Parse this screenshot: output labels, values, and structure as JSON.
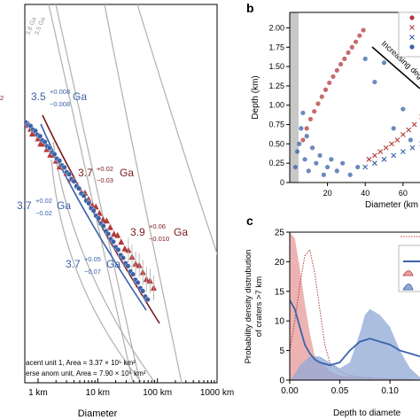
{
  "colors": {
    "red": "#b43a3a",
    "dark_red": "#7a1a1a",
    "blue": "#3a62a8",
    "gray_curve": "#b0b0b0",
    "gray_band": "#c8c8c8",
    "pink_fill": "#e9a0a0",
    "blue_fill": "#8fa8d6"
  },
  "chart_data": [
    {
      "panel": "a",
      "type": "scatter",
      "xlabel": "Diameter",
      "ylabel": "",
      "x_scale": "log",
      "x_ticks": [
        "1 km",
        "10 km",
        "100 km",
        "1000 km"
      ],
      "x_tick_values": [
        1,
        10,
        100,
        1000
      ],
      "xlim": [
        0.6,
        1000
      ],
      "iso_labels": [
        "3.8 Ga",
        "3.5 Ga"
      ],
      "annotations": [
        {
          "text": "3.5",
          "sup": "+0.008",
          "sub": "−0.008",
          "unit": "Ga",
          "color": "blue"
        },
        {
          "text": "3.7",
          "sup": "+0.02",
          "sub": "−0.03",
          "unit": "Ga",
          "color": "red"
        },
        {
          "text": "3.9",
          "sup": "+0.06",
          "sub": "−0.010",
          "unit": "Ga",
          "color": "red"
        },
        {
          "text": "3.7",
          "sup": "+0.02",
          "sub": "−0.02",
          "unit": "Ga",
          "color": "blue"
        },
        {
          "text": "3.7",
          "sup": "+0.05",
          "sub": "−0.07",
          "unit": "Ga",
          "color": "blue"
        },
        {
          "text": "",
          "sup": "2",
          "sub": "",
          "unit": "",
          "color": "red"
        }
      ],
      "legend": [
        "acent unit 1, Area = 3.37 × 10⁵ km²",
        "erse anom unit,  Area = 7.90 × 10⁵ km²"
      ],
      "series": [
        {
          "name": "",
          "marker": "triangle",
          "color": "red",
          "x": [
            0.55,
            0.6,
            0.65,
            0.7,
            0.75,
            0.8,
            0.9,
            1.0,
            1.1,
            1.2,
            1.4,
            1.6,
            1.8,
            2.0,
            2.3,
            2.6,
            3.0,
            3.5,
            4.0,
            4.6,
            5.3,
            6.1,
            7.0,
            8.1,
            9.3,
            10.7,
            12.3,
            14.1,
            16.2,
            18.7,
            21.5,
            24.7,
            28.4,
            32.6,
            37.5,
            43.1,
            49.6,
            57.0,
            65.5,
            75.3,
            86.6
          ]
        },
        {
          "name": "",
          "marker": "circle",
          "color": "blue",
          "x": [
            0.62,
            0.68,
            0.75,
            0.82,
            0.9,
            0.98,
            1.08,
            1.18,
            1.3,
            1.42,
            1.56,
            1.72,
            1.88,
            2.07,
            2.28,
            2.5,
            2.75,
            3.02,
            3.32,
            3.65,
            4.01,
            4.41,
            4.84,
            5.32,
            5.85,
            6.43,
            7.07,
            7.77,
            8.54,
            9.39,
            10.3,
            11.3,
            12.4,
            13.7,
            15.0,
            16.5,
            18.2,
            20.0,
            22.0,
            24.2,
            26.6,
            29.2,
            32.1,
            35.3,
            38.8,
            42.7,
            46.9,
            51.6,
            56.7,
            62.3,
            68.5
          ]
        }
      ]
    },
    {
      "panel": "b",
      "type": "scatter",
      "xlabel": "Diameter (km",
      "ylabel": "Depth (km)",
      "xlim": [
        0,
        100
      ],
      "ylim": [
        0,
        2.2
      ],
      "x_ticks": [
        20,
        40,
        60
      ],
      "y_ticks": [
        "0",
        "0.25",
        "0.50",
        "0.75",
        "1.00",
        "1.25",
        "1.50",
        "1.75",
        "2.00"
      ],
      "y_tick_values": [
        0,
        0.25,
        0.5,
        0.75,
        1.0,
        1.25,
        1.5,
        1.75,
        2.0
      ],
      "shaded_x_range": [
        0,
        7
      ],
      "annotation": "Increasing deg",
      "legend_markers": [
        "circle",
        "cross",
        "cross",
        "circle"
      ],
      "series": [
        {
          "name": "",
          "marker": "circle",
          "color": "red",
          "x": [
            7,
            9,
            11,
            13,
            15,
            17,
            19,
            21,
            23,
            25,
            27,
            29,
            31,
            33,
            35,
            37,
            39
          ],
          "y": [
            0.55,
            0.7,
            0.82,
            0.92,
            1.02,
            1.11,
            1.2,
            1.29,
            1.37,
            1.45,
            1.53,
            1.6,
            1.68,
            1.75,
            1.82,
            1.9,
            1.97
          ]
        },
        {
          "name": "",
          "marker": "cross",
          "color": "red",
          "x": [
            42,
            45,
            48,
            51,
            54,
            57,
            60,
            63,
            66,
            70,
            74,
            78,
            82
          ],
          "y": [
            0.3,
            0.35,
            0.4,
            0.45,
            0.5,
            0.55,
            0.62,
            0.68,
            0.75,
            0.85,
            0.95,
            1.05,
            1.15
          ]
        },
        {
          "name": "",
          "marker": "cross",
          "color": "blue",
          "x": [
            40,
            45,
            50,
            55,
            60,
            65,
            70,
            75,
            80
          ],
          "y": [
            0.2,
            0.25,
            0.3,
            0.35,
            0.4,
            0.45,
            0.5,
            0.55,
            0.6
          ]
        },
        {
          "name": "",
          "marker": "circle",
          "color": "blue",
          "x": [
            3,
            4,
            5,
            6,
            7,
            8,
            9,
            10,
            12,
            14,
            16,
            18,
            20,
            22,
            25,
            28,
            32,
            36,
            40,
            45,
            50,
            55,
            60,
            64,
            68,
            72
          ],
          "y": [
            0.2,
            0.4,
            0.5,
            0.7,
            0.9,
            0.3,
            0.6,
            0.15,
            0.45,
            0.25,
            0.35,
            0.1,
            0.2,
            0.3,
            0.15,
            0.25,
            0.1,
            0.2,
            1.6,
            1.3,
            1.55,
            0.7,
            0.95,
            0.55,
            1.9,
            1.2
          ]
        }
      ]
    },
    {
      "panel": "c",
      "type": "area",
      "xlabel": "Depth to diamete",
      "ylabel": "Probability density distribution of craters >7 km",
      "ylabel_lines": [
        "Probability density distrubution",
        "of craters >7 km"
      ],
      "xlim": [
        0,
        0.13
      ],
      "ylim": [
        0,
        25
      ],
      "x_ticks": [
        "0.00",
        "0.05",
        "0.10"
      ],
      "x_tick_values": [
        0,
        0.05,
        0.1
      ],
      "y_ticks": [
        0,
        5,
        10,
        15,
        20,
        25
      ],
      "series": [
        {
          "name": "",
          "style": "red-fill",
          "x": [
            0,
            0.005,
            0.01,
            0.015,
            0.02,
            0.025,
            0.03,
            0.035,
            0.04,
            0.05,
            0.06,
            0.07,
            0.08,
            0.09,
            0.1,
            0.11,
            0.12,
            0.13
          ],
          "y": [
            25,
            24,
            19,
            13,
            8,
            4,
            3,
            2.5,
            1.5,
            0.8,
            0.6,
            0.4,
            0.3,
            0.2,
            0.2,
            0.1,
            0.1,
            0
          ]
        },
        {
          "name": "",
          "style": "red-dotted",
          "x": [
            0,
            0.005,
            0.01,
            0.015,
            0.02,
            0.025,
            0.03,
            0.035,
            0.04,
            0.05,
            0.06,
            0.07,
            0.08,
            0.09,
            0.1,
            0.11,
            0.12,
            0.13
          ],
          "y": [
            5,
            10,
            16,
            21,
            22,
            18,
            12,
            6,
            3,
            1.5,
            0.8,
            0.5,
            0.4,
            0.3,
            0.2,
            0.2,
            0.1,
            0
          ]
        },
        {
          "name": "",
          "style": "blue-fill",
          "x": [
            0,
            0.005,
            0.01,
            0.02,
            0.03,
            0.04,
            0.05,
            0.06,
            0.07,
            0.075,
            0.08,
            0.09,
            0.1,
            0.11,
            0.12,
            0.13
          ],
          "y": [
            0,
            1,
            2.5,
            4,
            4,
            3,
            2,
            3,
            8,
            11,
            12,
            11,
            9,
            5,
            2,
            0.5
          ]
        },
        {
          "name": "",
          "style": "blue-line",
          "x": [
            0,
            0.005,
            0.01,
            0.015,
            0.02,
            0.025,
            0.03,
            0.04,
            0.05,
            0.06,
            0.07,
            0.08,
            0.09,
            0.1,
            0.11,
            0.12,
            0.13
          ],
          "y": [
            13.5,
            12,
            9,
            6,
            4.5,
            3.5,
            3,
            2.5,
            3,
            5,
            6.5,
            7,
            6.5,
            6,
            5,
            4.5,
            4
          ]
        }
      ]
    }
  ],
  "panels": {
    "b_label": "b",
    "c_label": "c"
  }
}
